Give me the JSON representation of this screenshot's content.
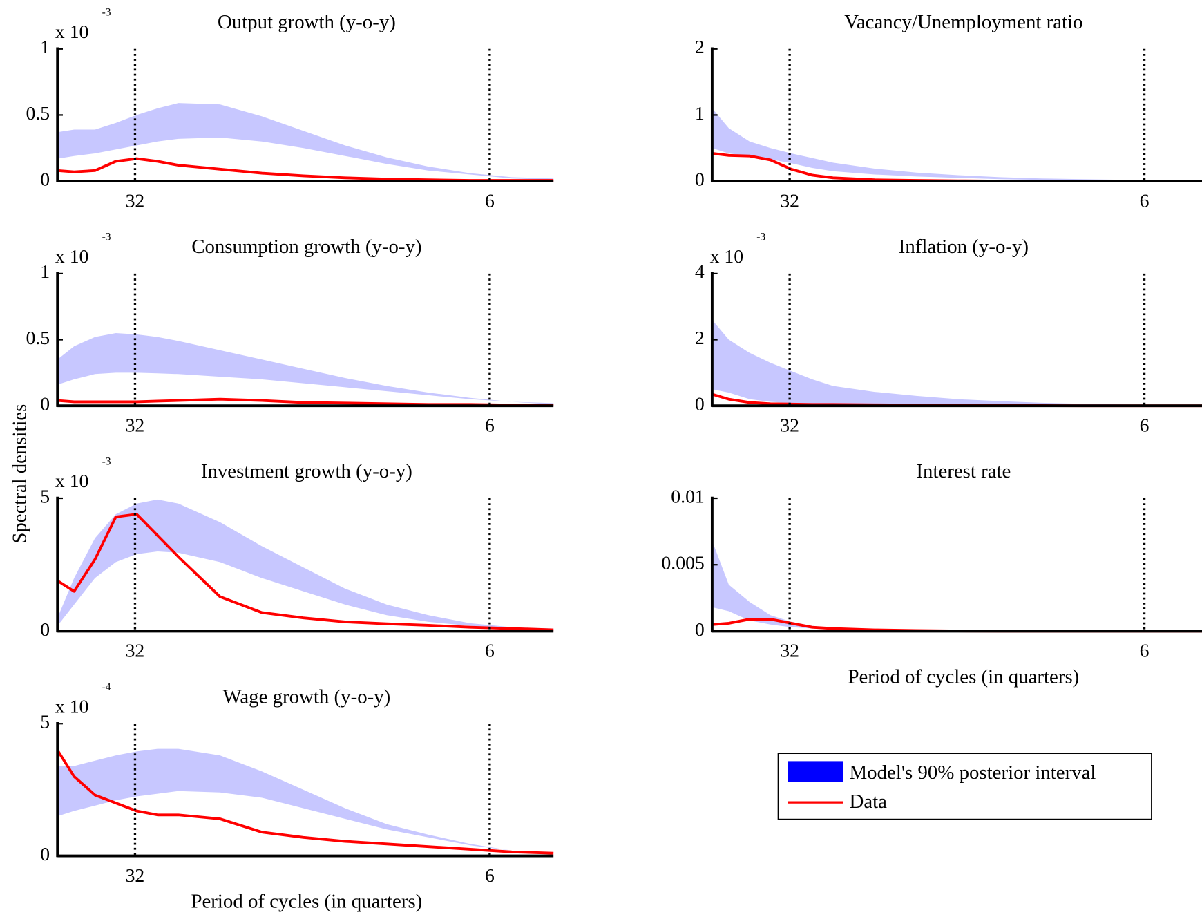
{
  "ylabel": "Spectral densities",
  "legend": {
    "items": [
      {
        "name": "Model's 90% posterior interval",
        "color": "#0000ff"
      },
      {
        "name": "Data",
        "color": "#ff0000"
      }
    ]
  },
  "chart_data": [
    {
      "type": "band_line",
      "title": "Output growth (y-o-y)",
      "scale_prefix": "x 10",
      "scale_power": "-3",
      "x": [
        0.01,
        0.05,
        0.1,
        0.15,
        0.2,
        0.25,
        0.3,
        0.4,
        0.5,
        0.6,
        0.7,
        0.8,
        0.9,
        1.0,
        1.1,
        1.2
      ],
      "upper": [
        0.37,
        0.39,
        0.39,
        0.44,
        0.5,
        0.55,
        0.59,
        0.58,
        0.49,
        0.38,
        0.27,
        0.18,
        0.11,
        0.06,
        0.03,
        0.02
      ],
      "lower": [
        0.17,
        0.19,
        0.21,
        0.24,
        0.27,
        0.3,
        0.32,
        0.33,
        0.3,
        0.25,
        0.19,
        0.13,
        0.08,
        0.05,
        0.02,
        0.01
      ],
      "values": [
        0.08,
        0.07,
        0.08,
        0.15,
        0.17,
        0.15,
        0.12,
        0.09,
        0.06,
        0.04,
        0.025,
        0.015,
        0.01,
        0.005,
        0.005,
        0.005
      ],
      "xlim": [
        0.01,
        1.2
      ],
      "xticks": [
        {
          "value": 0.196,
          "label": "32"
        },
        {
          "value": 1.047,
          "label": "6"
        }
      ],
      "ylim": [
        0,
        1
      ],
      "yticks": [
        0,
        0.5,
        1
      ]
    },
    {
      "type": "band_line",
      "title": "Consumption growth (y-o-y)",
      "scale_prefix": "x 10",
      "scale_power": "-3",
      "x": [
        0.01,
        0.05,
        0.1,
        0.15,
        0.2,
        0.25,
        0.3,
        0.4,
        0.5,
        0.6,
        0.7,
        0.8,
        0.9,
        1.0,
        1.1,
        1.2
      ],
      "upper": [
        0.35,
        0.45,
        0.52,
        0.55,
        0.54,
        0.52,
        0.49,
        0.42,
        0.35,
        0.28,
        0.21,
        0.15,
        0.1,
        0.06,
        0.03,
        0.02
      ],
      "lower": [
        0.16,
        0.2,
        0.24,
        0.25,
        0.25,
        0.245,
        0.24,
        0.22,
        0.2,
        0.17,
        0.14,
        0.11,
        0.08,
        0.05,
        0.03,
        0.01
      ],
      "values": [
        0.04,
        0.03,
        0.03,
        0.03,
        0.03,
        0.035,
        0.04,
        0.05,
        0.04,
        0.025,
        0.02,
        0.015,
        0.01,
        0.01,
        0.005,
        0.005
      ],
      "xlim": [
        0.01,
        1.2
      ],
      "xticks": [
        {
          "value": 0.196,
          "label": "32"
        },
        {
          "value": 1.047,
          "label": "6"
        }
      ],
      "ylim": [
        0,
        1
      ],
      "yticks": [
        0,
        0.5,
        1
      ]
    },
    {
      "type": "band_line",
      "title": "Investment growth (y-o-y)",
      "scale_prefix": "x 10",
      "scale_power": "-3",
      "x": [
        0.01,
        0.05,
        0.1,
        0.15,
        0.2,
        0.25,
        0.3,
        0.4,
        0.5,
        0.6,
        0.7,
        0.8,
        0.9,
        1.0,
        1.1,
        1.2
      ],
      "upper": [
        0.5,
        2.0,
        3.5,
        4.4,
        4.8,
        4.95,
        4.8,
        4.1,
        3.2,
        2.4,
        1.6,
        1.0,
        0.6,
        0.3,
        0.15,
        0.1
      ],
      "lower": [
        0.2,
        1.0,
        2.0,
        2.6,
        2.9,
        3.0,
        2.95,
        2.6,
        2.0,
        1.5,
        1.0,
        0.6,
        0.35,
        0.2,
        0.1,
        0.05
      ],
      "values": [
        1.9,
        1.5,
        2.7,
        4.3,
        4.4,
        3.6,
        2.8,
        1.3,
        0.7,
        0.5,
        0.35,
        0.28,
        0.22,
        0.15,
        0.1,
        0.05
      ],
      "xlim": [
        0.01,
        1.2
      ],
      "xticks": [
        {
          "value": 0.196,
          "label": "32"
        },
        {
          "value": 1.047,
          "label": "6"
        }
      ],
      "ylim": [
        0,
        5
      ],
      "yticks": [
        0,
        5
      ]
    },
    {
      "type": "band_line",
      "title": "Wage growth (y-o-y)",
      "scale_prefix": "x 10",
      "scale_power": "-4",
      "xlabel": "Period of cycles (in quarters)",
      "x": [
        0.01,
        0.05,
        0.1,
        0.15,
        0.2,
        0.25,
        0.3,
        0.4,
        0.5,
        0.6,
        0.7,
        0.8,
        0.9,
        1.0,
        1.1,
        1.2
      ],
      "upper": [
        3.4,
        3.4,
        3.6,
        3.8,
        3.95,
        4.05,
        4.05,
        3.8,
        3.2,
        2.5,
        1.8,
        1.2,
        0.8,
        0.45,
        0.2,
        0.1
      ],
      "lower": [
        1.5,
        1.7,
        1.9,
        2.1,
        2.25,
        2.35,
        2.45,
        2.4,
        2.2,
        1.8,
        1.4,
        1.0,
        0.7,
        0.4,
        0.2,
        0.1
      ],
      "values": [
        4.0,
        3.0,
        2.3,
        2.0,
        1.7,
        1.55,
        1.55,
        1.4,
        0.9,
        0.7,
        0.55,
        0.45,
        0.35,
        0.25,
        0.15,
        0.1
      ],
      "xlim": [
        0.01,
        1.2
      ],
      "xticks": [
        {
          "value": 0.196,
          "label": "32"
        },
        {
          "value": 1.047,
          "label": "6"
        }
      ],
      "ylim": [
        0,
        5
      ],
      "yticks": [
        0,
        5
      ]
    },
    {
      "type": "band_line",
      "title": "Vacancy/Unemployment ratio",
      "x": [
        0.01,
        0.05,
        0.1,
        0.15,
        0.2,
        0.25,
        0.3,
        0.4,
        0.5,
        0.6,
        0.7,
        0.8,
        0.9,
        1.0,
        1.1,
        1.2
      ],
      "upper": [
        1.1,
        0.8,
        0.6,
        0.5,
        0.42,
        0.35,
        0.28,
        0.19,
        0.13,
        0.09,
        0.06,
        0.04,
        0.03,
        0.02,
        0.01,
        0.01
      ],
      "lower": [
        0.5,
        0.42,
        0.38,
        0.33,
        0.27,
        0.2,
        0.15,
        0.1,
        0.07,
        0.05,
        0.03,
        0.02,
        0.01,
        0.01,
        0.005,
        0.005
      ],
      "values": [
        0.42,
        0.39,
        0.38,
        0.32,
        0.18,
        0.09,
        0.05,
        0.02,
        0.01,
        0.005,
        0,
        0,
        0,
        0,
        0,
        0
      ],
      "xlim": [
        0.01,
        1.2
      ],
      "xticks": [
        {
          "value": 0.196,
          "label": "32"
        },
        {
          "value": 1.047,
          "label": "6"
        }
      ],
      "ylim": [
        0,
        2
      ],
      "yticks": [
        0,
        1,
        2
      ]
    },
    {
      "type": "band_line",
      "title": "Inflation (y-o-y)",
      "scale_prefix": "x 10",
      "scale_power": "-3",
      "x": [
        0.01,
        0.05,
        0.1,
        0.15,
        0.2,
        0.25,
        0.3,
        0.4,
        0.5,
        0.6,
        0.7,
        0.8,
        0.9,
        1.0,
        1.1,
        1.2
      ],
      "upper": [
        2.6,
        2.0,
        1.6,
        1.3,
        1.05,
        0.8,
        0.6,
        0.42,
        0.3,
        0.2,
        0.14,
        0.09,
        0.06,
        0.04,
        0.02,
        0.01
      ],
      "lower": [
        0.5,
        0.4,
        0.2,
        0.12,
        0.08,
        0.05,
        0.04,
        0.03,
        0.02,
        0.01,
        0.01,
        0.005,
        0,
        0,
        0,
        0
      ],
      "values": [
        0.35,
        0.2,
        0.1,
        0.06,
        0.05,
        0.04,
        0.04,
        0.03,
        0.02,
        0.01,
        0.01,
        0.005,
        0,
        0,
        0,
        0
      ],
      "xlim": [
        0.01,
        1.2
      ],
      "xticks": [
        {
          "value": 0.196,
          "label": "32"
        },
        {
          "value": 1.047,
          "label": "6"
        }
      ],
      "ylim": [
        0,
        4
      ],
      "yticks": [
        0,
        2,
        4
      ]
    },
    {
      "type": "band_line",
      "title": "Interest rate",
      "xlabel": "Period of cycles (in quarters)",
      "x": [
        0.01,
        0.05,
        0.1,
        0.15,
        0.2,
        0.25,
        0.3,
        0.4,
        0.5,
        0.6,
        0.7,
        0.8,
        0.9,
        1.0,
        1.1,
        1.2
      ],
      "upper": [
        0.0068,
        0.0035,
        0.0022,
        0.0012,
        0.0007,
        0.0004,
        0.0002,
        0.0001,
        5e-05,
        2e-05,
        0,
        0,
        0,
        0,
        0,
        0
      ],
      "lower": [
        0.0018,
        0.0015,
        0.0008,
        0.0005,
        0.0003,
        0.0002,
        0.0001,
        5e-05,
        0,
        0,
        0,
        0,
        0,
        0,
        0,
        0
      ],
      "values": [
        0.0005,
        0.0006,
        0.0009,
        0.0009,
        0.0006,
        0.0003,
        0.0002,
        0.0001,
        5e-05,
        2e-05,
        0,
        0,
        0,
        0,
        0,
        0
      ],
      "xlim": [
        0.01,
        1.2
      ],
      "xticks": [
        {
          "value": 0.196,
          "label": "32"
        },
        {
          "value": 1.047,
          "label": "6"
        }
      ],
      "ylim": [
        0,
        0.01
      ],
      "yticks": [
        0,
        0.005,
        0.01
      ]
    }
  ]
}
